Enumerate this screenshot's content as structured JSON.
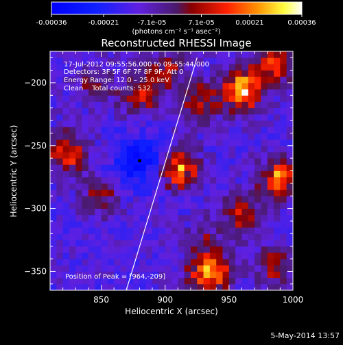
{
  "colorbar": {
    "tick_labels": [
      "-0.00036",
      "-0.00021",
      "-7.1e-05",
      "7.1e-05",
      "0.00021",
      "0.00036"
    ],
    "tick_values": [
      -0.00036,
      -0.00021,
      -7.1e-05,
      7.1e-05,
      0.00021,
      0.00036
    ],
    "range": [
      -0.00036,
      0.00036
    ],
    "units": "(photons cm⁻² s⁻¹ asec⁻²)"
  },
  "chart_data": {
    "type": "heatmap",
    "title": "Reconstructed RHESSI Image",
    "xlabel": "Heliocentric X (arcsec)",
    "ylabel": "Heliocentric Y (arcsec)",
    "xlim": [
      810,
      1000
    ],
    "ylim": [
      -365,
      -175
    ],
    "x_ticks": [
      850,
      900,
      950,
      1000
    ],
    "x_tick_labels": [
      "850",
      "900",
      "950",
      "1000"
    ],
    "y_ticks": [
      -350,
      -300,
      -250,
      -200
    ],
    "y_tick_labels": [
      "−350",
      "−300",
      "−250",
      "−200"
    ],
    "annotations": [
      "17-Jul-2012 09:55:56.000 to 09:55:44.000",
      "Detectors: 3F 5F 6F 7F 8F 9F, Att 0",
      "Energy Range: 12.0 – 25.0 keV",
      "Clean    Total counts: 532."
    ],
    "peak_label": "Position of Peak = [964,-209]",
    "peak_position": [
      964,
      -209
    ],
    "limb_line": {
      "x": [
        869,
        925
      ],
      "y": [
        -367,
        -180
      ]
    },
    "bright_sources": [
      {
        "x": 910,
        "y": -268,
        "intensity": 0.00033
      },
      {
        "x": 960,
        "y": -205,
        "intensity": 0.00036
      },
      {
        "x": 935,
        "y": -350,
        "intensity": 0.00034
      },
      {
        "x": 990,
        "y": -275,
        "intensity": 0.0003
      },
      {
        "x": 825,
        "y": -255,
        "intensity": 0.00025
      },
      {
        "x": 985,
        "y": -185,
        "intensity": 0.00025
      },
      {
        "x": 880,
        "y": -210,
        "intensity": 0.0002
      },
      {
        "x": 960,
        "y": -305,
        "intensity": 0.00022
      },
      {
        "x": 850,
        "y": -290,
        "intensity": 0.00015
      },
      {
        "x": 900,
        "y": -190,
        "intensity": 0.00018
      },
      {
        "x": 925,
        "y": -215,
        "intensity": 0.0002
      },
      {
        "x": 985,
        "y": -345,
        "intensity": 0.00018
      },
      {
        "x": 930,
        "y": -325,
        "intensity": 0.0001
      },
      {
        "x": 845,
        "y": -200,
        "intensity": 0.00012
      }
    ],
    "dark_minimum": {
      "x": 880,
      "y": -262
    },
    "colorscale": "rhessi"
  },
  "footer": {
    "date_stamp": "5-May-2014 13:57"
  }
}
